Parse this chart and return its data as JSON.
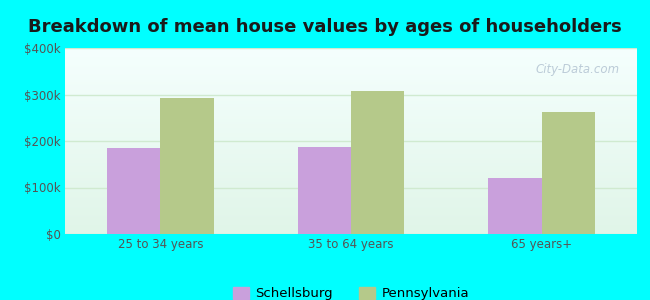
{
  "title": "Breakdown of mean house values by ages of householders",
  "categories": [
    "25 to 34 years",
    "35 to 64 years",
    "65 years+"
  ],
  "schellsburg_values": [
    185000,
    187000,
    120000
  ],
  "pennsylvania_values": [
    293000,
    308000,
    263000
  ],
  "schellsburg_color": "#c9a0dc",
  "pennsylvania_color": "#b5c98a",
  "bar_width": 0.28,
  "ylim": [
    0,
    400000
  ],
  "yticks": [
    0,
    100000,
    200000,
    300000,
    400000
  ],
  "ytick_labels": [
    "$0",
    "$100k",
    "$200k",
    "$300k",
    "$400k"
  ],
  "background_color": "#00ffff",
  "plot_bg_top": "#f5fffe",
  "plot_bg_bottom": "#e0f5e8",
  "grid_color": "#d0ead0",
  "title_fontsize": 13,
  "legend_labels": [
    "Schellsburg",
    "Pennsylvania"
  ],
  "watermark": "City-Data.com",
  "tick_color": "#555555",
  "tick_fontsize": 8.5
}
